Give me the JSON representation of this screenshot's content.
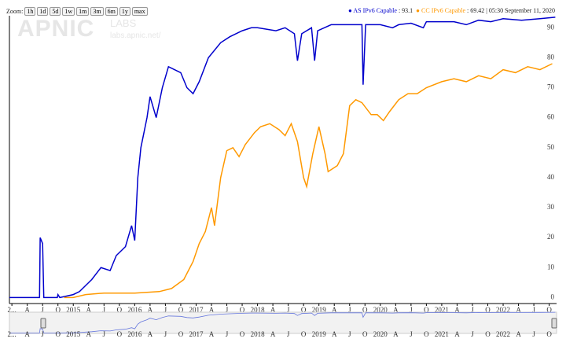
{
  "zoom_label": "Zoom:",
  "zoom_buttons": [
    "1h",
    "1d",
    "5d",
    "1w",
    "1m",
    "3m",
    "6m",
    "1y",
    "max"
  ],
  "watermark": {
    "logo": "APNIC",
    "labs": "LABS",
    "url": "labs.apnic.net/"
  },
  "timestamp": "| 05:30 September 11, 2020",
  "chart_data": {
    "type": "line",
    "xlim": [
      2013.96,
      2022.87
    ],
    "ylim": [
      -2,
      94
    ],
    "yticks": [
      0,
      10,
      20,
      30,
      40,
      50,
      60,
      70,
      80,
      90
    ],
    "xticks": [
      {
        "value": 2014,
        "label": "2..."
      },
      {
        "value": 2014.25,
        "label": "A"
      },
      {
        "value": 2014.5,
        "label": "J"
      },
      {
        "value": 2014.75,
        "label": "O"
      },
      2015,
      {
        "value": 2015.25,
        "label": "A"
      },
      {
        "value": 2015.5,
        "label": "J"
      },
      {
        "value": 2015.75,
        "label": "O"
      },
      2016,
      {
        "value": 2016.25,
        "label": "A"
      },
      {
        "value": 2016.5,
        "label": "J"
      },
      {
        "value": 2016.75,
        "label": "O"
      },
      2017,
      {
        "value": 2017.25,
        "label": "A"
      },
      {
        "value": 2017.5,
        "label": "J"
      },
      {
        "value": 2017.75,
        "label": "O"
      },
      2018,
      {
        "value": 2018.25,
        "label": "A"
      },
      {
        "value": 2018.5,
        "label": "J"
      },
      {
        "value": 2018.75,
        "label": "O"
      },
      2019,
      {
        "value": 2019.25,
        "label": "A"
      },
      {
        "value": 2019.5,
        "label": "J"
      },
      {
        "value": 2019.75,
        "label": "O"
      },
      2020,
      {
        "value": 2020.25,
        "label": "A"
      },
      {
        "value": 2020.5,
        "label": "J"
      },
      {
        "value": 2020.75,
        "label": "O"
      },
      2021,
      {
        "value": 2021.25,
        "label": "A"
      },
      {
        "value": 2021.5,
        "label": "J"
      },
      {
        "value": 2021.75,
        "label": "O"
      },
      2022,
      {
        "value": 2022.25,
        "label": "A"
      },
      {
        "value": 2022.5,
        "label": "J"
      },
      {
        "value": 2022.75,
        "label": "O"
      }
    ],
    "grid": false,
    "series": [
      {
        "name": "AS IPv6 Capable",
        "color": "#0000cc",
        "current_value": 93.1,
        "current_label": ": 93.1",
        "x": [
          2013.96,
          2014.45,
          2014.46,
          2014.5,
          2014.52,
          2014.74,
          2014.75,
          2014.78,
          2015.0,
          2015.1,
          2015.2,
          2015.3,
          2015.45,
          2015.6,
          2015.7,
          2015.85,
          2015.95,
          2016.0,
          2016.05,
          2016.1,
          2016.2,
          2016.25,
          2016.35,
          2016.45,
          2016.55,
          2016.75,
          2016.85,
          2016.95,
          2017.05,
          2017.2,
          2017.4,
          2017.55,
          2017.75,
          2017.9,
          2018.0,
          2018.3,
          2018.45,
          2018.6,
          2018.65,
          2018.72,
          2018.88,
          2018.93,
          2018.98,
          2019.2,
          2019.5,
          2019.7,
          2019.72,
          2019.76,
          2020.0,
          2020.2,
          2020.3,
          2020.5,
          2020.7,
          2020.75,
          2021.0,
          2021.2,
          2021.4,
          2021.6,
          2021.8,
          2022.0,
          2022.3,
          2022.6,
          2022.85
        ],
        "values": [
          0,
          0,
          20,
          18,
          0,
          0,
          1,
          0,
          1,
          2,
          4,
          6,
          10,
          9,
          14,
          17,
          24,
          19,
          40,
          50,
          60,
          67,
          60,
          70,
          77,
          75,
          70,
          68,
          72,
          80,
          85,
          87,
          89,
          90,
          90,
          89,
          90,
          88,
          79,
          88,
          90,
          79,
          89,
          91,
          91,
          91,
          71,
          91,
          91,
          90,
          91,
          91.5,
          90,
          92,
          92,
          92,
          91,
          92.5,
          92,
          93,
          92.5,
          93,
          93.5
        ]
      },
      {
        "name": "CC IPv6 Capable",
        "color": "#ff9900",
        "current_value": 69.42,
        "current_label": ": 69.42",
        "x": [
          2014.85,
          2015.0,
          2015.2,
          2015.5,
          2016.0,
          2016.4,
          2016.6,
          2016.8,
          2016.95,
          2017.05,
          2017.15,
          2017.25,
          2017.3,
          2017.4,
          2017.5,
          2017.6,
          2017.7,
          2017.8,
          2017.95,
          2018.05,
          2018.2,
          2018.35,
          2018.45,
          2018.55,
          2018.65,
          2018.75,
          2018.8,
          2018.9,
          2019.0,
          2019.1,
          2019.15,
          2019.3,
          2019.4,
          2019.5,
          2019.6,
          2019.7,
          2019.85,
          2019.95,
          2020.05,
          2020.15,
          2020.3,
          2020.45,
          2020.6,
          2020.75,
          2021.0,
          2021.2,
          2021.4,
          2021.6,
          2021.8,
          2022.0,
          2022.2,
          2022.4,
          2022.6,
          2022.8
        ],
        "values": [
          0,
          0,
          1,
          1.5,
          1.5,
          2,
          3,
          6,
          12,
          18,
          22,
          30,
          24,
          40,
          49,
          50,
          47,
          51,
          55,
          57,
          58,
          56,
          54,
          58,
          52,
          40,
          37,
          48,
          57,
          48,
          42,
          44,
          48,
          64,
          66,
          65,
          61,
          61,
          59,
          62,
          66,
          68,
          68,
          70,
          72,
          73,
          72,
          74,
          73,
          76,
          75,
          77,
          76,
          78
        ]
      }
    ]
  }
}
